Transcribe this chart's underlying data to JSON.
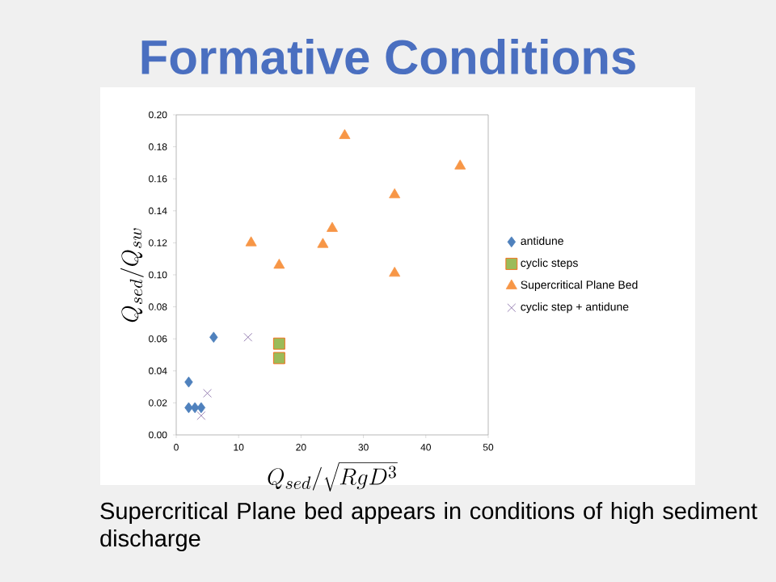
{
  "chart_data": {
    "type": "scatter",
    "title": "Formative Conditions",
    "xlabel": "Q_{sed}/\\sqrt{RgD^3}",
    "ylabel": "Q_{sed}/Q_{sw}",
    "annotations": [
      "Supercritical Plane bed appears in conditions of high sediment discharge"
    ],
    "xlim": [
      0,
      50
    ],
    "ylim": [
      0,
      0.2
    ],
    "xticks": [
      0,
      10,
      20,
      30,
      40,
      50
    ],
    "yticks": [
      {
        "value": 0,
        "label": "0.00"
      },
      {
        "value": 0.02,
        "label": "0.02"
      },
      {
        "value": 0.04,
        "label": "0.04"
      },
      {
        "value": 0.06,
        "label": "0.06"
      },
      {
        "value": 0.08,
        "label": "0.08"
      },
      {
        "value": 0.1,
        "label": "0.10"
      },
      {
        "value": 0.12,
        "label": "0.12"
      },
      {
        "value": 0.14,
        "label": "0.14"
      },
      {
        "value": 0.16,
        "label": "0.16"
      },
      {
        "value": 0.18,
        "label": "0.18"
      },
      {
        "value": 0.2,
        "label": "0.20"
      }
    ],
    "grid": false,
    "legend": "right",
    "series": [
      {
        "name": "antidune",
        "color": "#4f81bd",
        "marker": "diamond",
        "x": [
          6,
          2,
          2,
          3,
          4
        ],
        "values": [
          0.061,
          0.033,
          0.017,
          0.017,
          0.017
        ]
      },
      {
        "name": "cyclic steps",
        "color": "#9bbb59",
        "marker": "square",
        "x": [
          16.5,
          16.5
        ],
        "values": [
          0.057,
          0.048
        ]
      },
      {
        "name": "Supercritical Plane Bed",
        "color": "#f79646",
        "marker": "triangle",
        "x": [
          12,
          16.5,
          23.5,
          25,
          27,
          35,
          35,
          45.5
        ],
        "values": [
          0.12,
          0.106,
          0.119,
          0.129,
          0.187,
          0.15,
          0.101,
          0.168
        ]
      },
      {
        "name": "cyclic step + antidune",
        "color": "#8064a2",
        "marker": "cross",
        "x": [
          11.5,
          5,
          4
        ],
        "values": [
          0.061,
          0.026,
          0.012
        ]
      }
    ]
  }
}
